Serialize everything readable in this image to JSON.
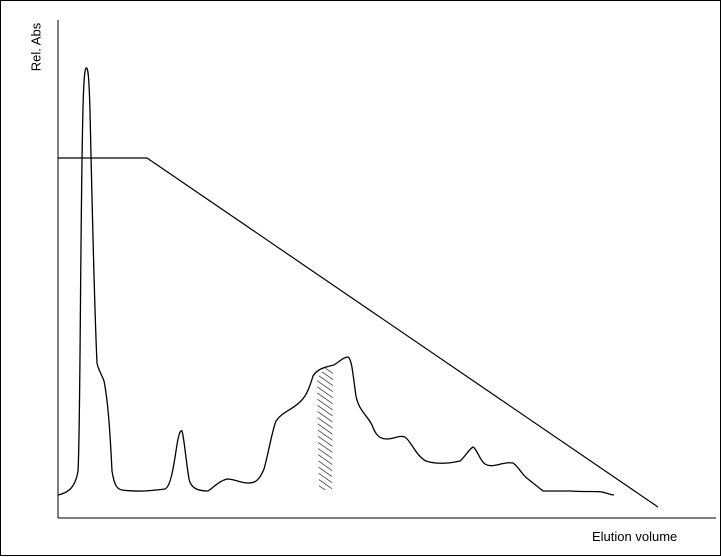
{
  "labels": {
    "y_axis": "Rel. Abs",
    "x_axis": "Elution volume"
  },
  "colors": {
    "stroke": "#000000",
    "background": "#ffffff"
  },
  "fraction_marker": {
    "pattern": "diagonal hatching"
  }
}
